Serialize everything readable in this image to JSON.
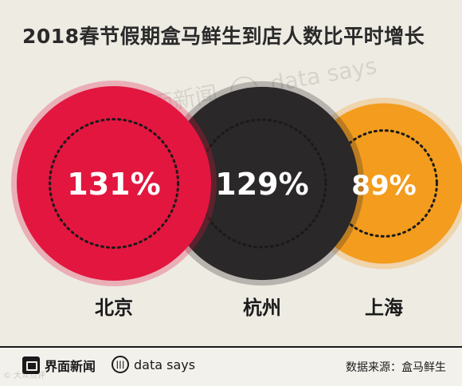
{
  "title": "2018春节假期盒马鲜生到店人数比平时增长",
  "watermark": {
    "left": "界面新闻",
    "right": "data says"
  },
  "chart_data": {
    "type": "bubble",
    "title": "2018春节假期盒马鲜生到店人数比平时增长",
    "unit": "%",
    "categories": [
      "北京",
      "杭州",
      "上海"
    ],
    "values": [
      131,
      129,
      89
    ],
    "value_labels": [
      "131%",
      "129%",
      "89%"
    ],
    "colors": [
      "#e2163f",
      "#2a2828",
      "#f39c1e"
    ]
  },
  "footer": {
    "brand": "界面新闻",
    "data_says": "data says",
    "source": "数据来源：盒马鲜生",
    "credit": "© 大众点评"
  },
  "icons": {
    "brand": "jiemian-logo-icon",
    "data_says": "data-says-logo-icon"
  }
}
